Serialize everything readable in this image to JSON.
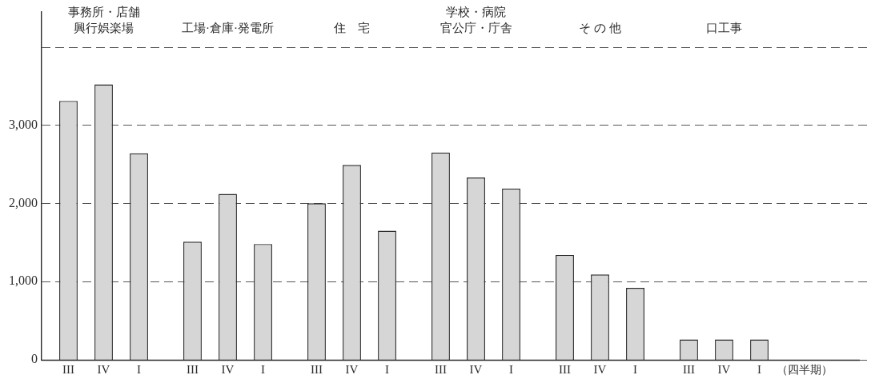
{
  "chart_data": {
    "type": "bar",
    "categories": [
      "事務所・店舗興行娯楽場",
      "工場·倉庫·発電所",
      "住　宅",
      "学校・病院官公庁・庁舎",
      "そ の 他",
      "口工事"
    ],
    "series": [
      {
        "name": "III",
        "color": "#d6d6d6",
        "values": [
          3310,
          1510,
          2000,
          2650,
          1340,
          260
        ]
      },
      {
        "name": "IV",
        "color": "#d6d6d6",
        "values": [
          3520,
          2120,
          2490,
          2330,
          1090,
          260
        ]
      },
      {
        "name": "I",
        "color": "#d6d6d6",
        "values": [
          2640,
          1480,
          1650,
          2190,
          920,
          260
        ]
      }
    ],
    "xlabel": "（四半期）",
    "ylim": [
      0,
      4450
    ],
    "yticks": [
      0,
      {
        "value": 1000,
        "label": "1,000"
      },
      {
        "value": 2000,
        "label": "2,000"
      },
      {
        "value": 3000,
        "label": "3,000"
      },
      {
        "value": 4000,
        "label": null
      }
    ],
    "grid": "y",
    "legend": false
  }
}
